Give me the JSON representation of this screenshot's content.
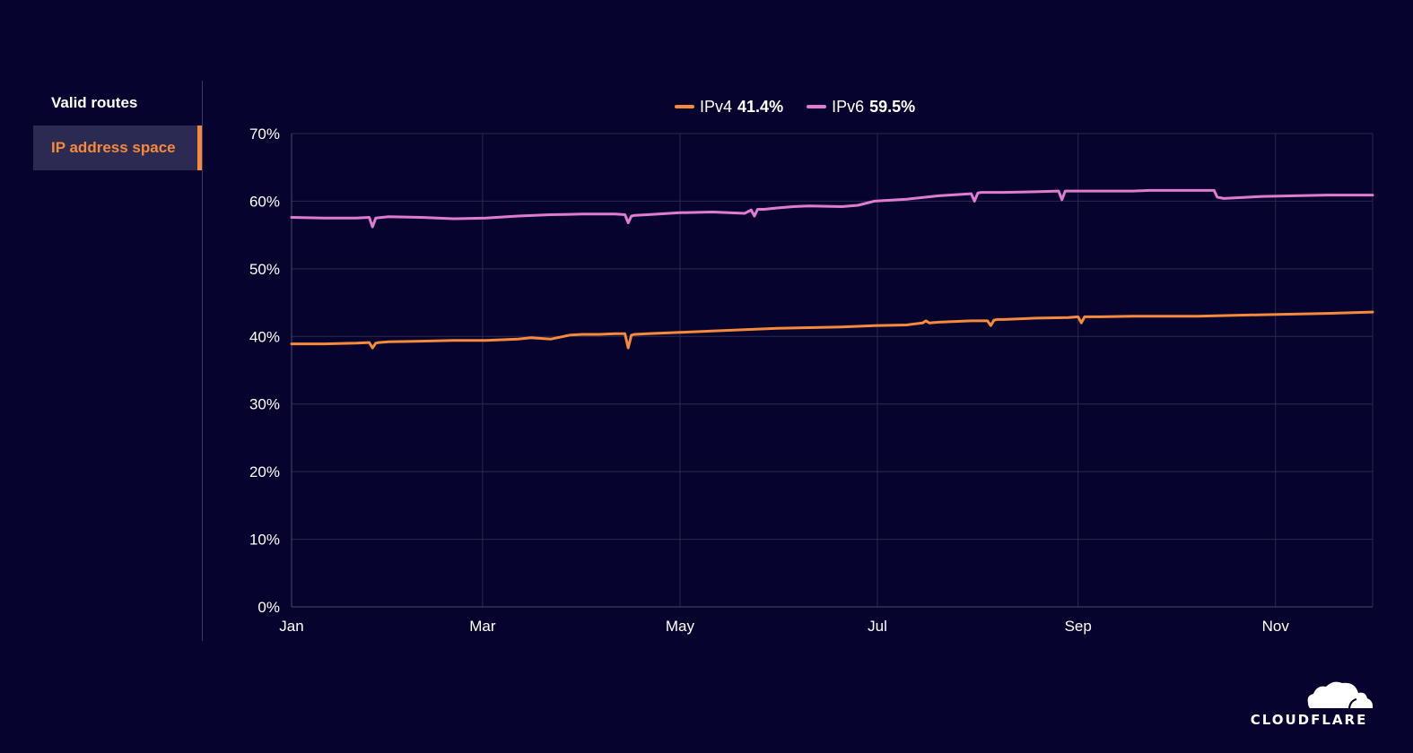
{
  "sidebar": {
    "tabs": [
      {
        "label": "Valid routes",
        "active": false
      },
      {
        "label": "IP address space",
        "active": true
      }
    ]
  },
  "legend": {
    "items": [
      {
        "name": "IPv4",
        "value": "41.4%",
        "color": "#f6893b"
      },
      {
        "name": "IPv6",
        "value": "59.5%",
        "color": "#e07bd2"
      }
    ]
  },
  "logo": {
    "text": "CLOUDFLARE",
    "icon": "cloud-icon"
  },
  "colors": {
    "background": "#06042e",
    "grid": "#2a2950",
    "ipv4": "#f6893b",
    "ipv6": "#e07bd2",
    "accent": "#f6893b"
  },
  "chart_data": {
    "type": "line",
    "xlabel": "",
    "ylabel": "",
    "x_tick_labels": [
      "Jan",
      "Mar",
      "May",
      "Jul",
      "Sep",
      "Nov"
    ],
    "x_tick_positions": [
      0,
      59,
      120,
      181,
      243,
      304
    ],
    "xlim": [
      0,
      334
    ],
    "y_tick_labels": [
      "0%",
      "10%",
      "20%",
      "30%",
      "40%",
      "50%",
      "60%",
      "70%"
    ],
    "ylim": [
      0,
      70
    ],
    "y_unit": "%",
    "grid": true,
    "legend_position": "top-center",
    "series": [
      {
        "name": "IPv4",
        "color": "#f6893b",
        "x": [
          0,
          10,
          20,
          24,
          25,
          26,
          27,
          30,
          40,
          50,
          60,
          70,
          74,
          80,
          84,
          85,
          86,
          90,
          95,
          100,
          103,
          104,
          105,
          106,
          110,
          120,
          130,
          140,
          150,
          160,
          170,
          180,
          190,
          195,
          196,
          197,
          200,
          210,
          215,
          216,
          217,
          218,
          220,
          230,
          240,
          243,
          244,
          245,
          250,
          260,
          270,
          280,
          290,
          300,
          310,
          320,
          334
        ],
        "y": [
          38.9,
          38.9,
          39.0,
          39.1,
          38.3,
          39.0,
          39.1,
          39.2,
          39.3,
          39.4,
          39.4,
          39.6,
          39.8,
          39.6,
          40.0,
          40.1,
          40.2,
          40.3,
          40.3,
          40.4,
          40.4,
          38.3,
          40.2,
          40.3,
          40.4,
          40.6,
          40.8,
          41.0,
          41.2,
          41.3,
          41.4,
          41.6,
          41.7,
          42.0,
          42.3,
          42.0,
          42.1,
          42.3,
          42.3,
          41.6,
          42.4,
          42.5,
          42.5,
          42.7,
          42.8,
          42.9,
          42.0,
          42.9,
          42.9,
          43.0,
          43.0,
          43.0,
          43.1,
          43.2,
          43.3,
          43.4,
          43.6
        ]
      },
      {
        "name": "IPv6",
        "color": "#e07bd2",
        "x": [
          0,
          10,
          20,
          24,
          25,
          26,
          30,
          40,
          50,
          60,
          70,
          80,
          90,
          100,
          103,
          104,
          105,
          106,
          110,
          120,
          130,
          140,
          142,
          143,
          144,
          146,
          150,
          155,
          160,
          170,
          175,
          180,
          190,
          200,
          210,
          211,
          212,
          213,
          220,
          230,
          237,
          238,
          239,
          240,
          250,
          260,
          265,
          270,
          280,
          285,
          286,
          288,
          300,
          310,
          320,
          334
        ],
        "y": [
          57.6,
          57.5,
          57.5,
          57.6,
          56.2,
          57.5,
          57.7,
          57.6,
          57.4,
          57.5,
          57.8,
          58.0,
          58.1,
          58.1,
          58.0,
          56.8,
          57.8,
          57.9,
          58.0,
          58.3,
          58.4,
          58.2,
          58.7,
          57.8,
          58.8,
          58.8,
          59.0,
          59.2,
          59.3,
          59.2,
          59.4,
          60.0,
          60.3,
          60.8,
          61.1,
          60.0,
          61.2,
          61.3,
          61.3,
          61.4,
          61.5,
          60.2,
          61.5,
          61.5,
          61.5,
          61.5,
          61.6,
          61.6,
          61.6,
          61.6,
          60.6,
          60.4,
          60.7,
          60.8,
          60.9,
          60.9
        ]
      }
    ]
  }
}
